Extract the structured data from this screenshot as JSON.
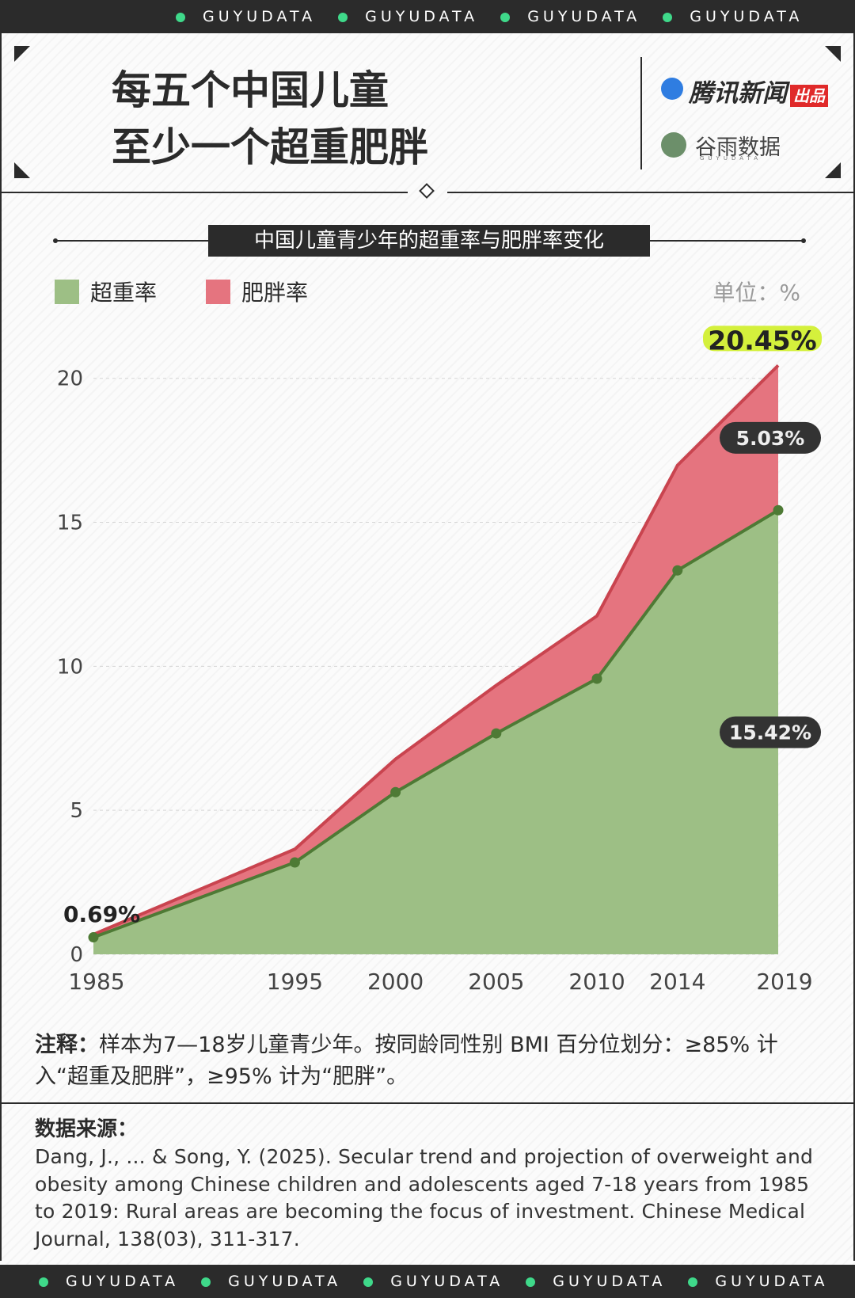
{
  "banner_top": [
    "GUYUDATA",
    "GUYUDATA",
    "GUYUDATA",
    "GUYUDATA"
  ],
  "header": {
    "title_lines": [
      "每五个中国儿童",
      "至少一个超重肥胖"
    ],
    "publisher": "腾讯新闻",
    "publisher_tag": "出品",
    "brand": "谷雨数据",
    "brand_sub": "GUYUDATA"
  },
  "chart_data": {
    "type": "area",
    "stacked": true,
    "title": "中国儿童青少年的超重率与肥胖率变化",
    "unit": "单位：%",
    "x": [
      1985,
      1995,
      2000,
      2005,
      2010,
      2014,
      2019
    ],
    "xticks": [
      1985,
      1995,
      2000,
      2005,
      2010,
      2014,
      2019
    ],
    "xlim": [
      1985,
      2019
    ],
    "ylim": [
      0,
      22
    ],
    "yticks": [
      0,
      5,
      10,
      15,
      20
    ],
    "grid": true,
    "series": [
      {
        "name": "超重率",
        "color": "#9dbf85",
        "line_color": "#4e7a35",
        "markers": true,
        "values": [
          0.59,
          3.19,
          5.63,
          7.67,
          9.57,
          13.33,
          15.42
        ],
        "value_labels": [
          null,
          null,
          null,
          null,
          null,
          null,
          "15.42%"
        ]
      },
      {
        "name": "肥胖率",
        "color": "#e5747f",
        "line_color": "#c9444f",
        "markers": false,
        "values": [
          0.1,
          0.46,
          1.15,
          1.67,
          2.18,
          3.65,
          5.03
        ],
        "value_labels": [
          null,
          null,
          null,
          null,
          null,
          null,
          "5.03%"
        ]
      }
    ],
    "annotations": [
      {
        "text": "0.69%",
        "x": 1985
      },
      {
        "text": "20.45%",
        "x": 2019,
        "highlight_color": "#d4f03c"
      }
    ]
  },
  "note": {
    "label": "注释：",
    "text": "样本为7—18岁儿童青少年。按同龄同性别 BMI 百分位划分：≥85% 计入“超重及肥胖”，≥95% 计为“肥胖”。"
  },
  "source": {
    "heading": "数据来源：",
    "text": "Dang, J., ... & Song, Y. (2025). Secular trend and projection of overweight and obesity among Chinese children and adolescents aged 7-18 years from 1985 to 2019: Rural areas are becoming the focus of investment. Chinese Medical Journal, 138(03), 311-317."
  },
  "banner_bottom": [
    "GUYUDATA",
    "GUYUDATA",
    "GUYUDATA",
    "GUYUDATA",
    "GUYUDATA"
  ]
}
